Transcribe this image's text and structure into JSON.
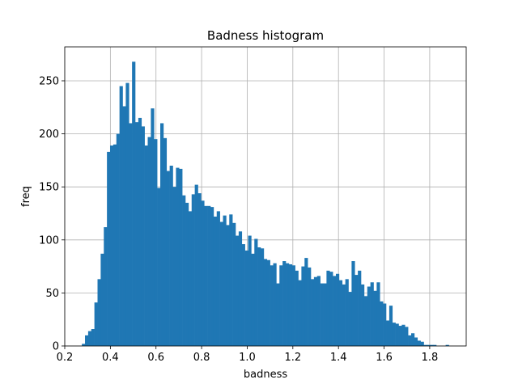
{
  "chart_data": {
    "type": "bar",
    "title": "Badness histogram",
    "xlabel": "badness",
    "ylabel": "freq",
    "xlim": [
      0.2,
      1.96
    ],
    "ylim": [
      0,
      282
    ],
    "grid": true,
    "bar_color": "#1f77b4",
    "bin_start": 0.275,
    "bin_width": 0.01375,
    "x_ticks": [
      {
        "value": 0.2,
        "label": "0.2"
      },
      {
        "value": 0.4,
        "label": "0.4"
      },
      {
        "value": 0.6,
        "label": "0.6"
      },
      {
        "value": 0.8,
        "label": "0.8"
      },
      {
        "value": 1.0,
        "label": "1.0"
      },
      {
        "value": 1.2,
        "label": "1.2"
      },
      {
        "value": 1.4,
        "label": "1.4"
      },
      {
        "value": 1.6,
        "label": "1.6"
      },
      {
        "value": 1.8,
        "label": "1.8"
      }
    ],
    "y_ticks": [
      {
        "value": 0,
        "label": "0"
      },
      {
        "value": 50,
        "label": "50"
      },
      {
        "value": 100,
        "label": "100"
      },
      {
        "value": 150,
        "label": "150"
      },
      {
        "value": 200,
        "label": "200"
      },
      {
        "value": 250,
        "label": "250"
      }
    ],
    "values": [
      2,
      10,
      14,
      16,
      41,
      63,
      87,
      112,
      183,
      189,
      190,
      200,
      245,
      226,
      248,
      210,
      268,
      211,
      215,
      207,
      189,
      197,
      224,
      195,
      149,
      210,
      196,
      165,
      170,
      150,
      168,
      167,
      142,
      135,
      127,
      143,
      152,
      144,
      137,
      132,
      132,
      131,
      122,
      127,
      117,
      123,
      114,
      124,
      116,
      104,
      108,
      96,
      90,
      104,
      87,
      101,
      93,
      92,
      82,
      81,
      76,
      78,
      59,
      76,
      80,
      78,
      77,
      76,
      71,
      62,
      75,
      83,
      74,
      63,
      65,
      66,
      59,
      59,
      71,
      70,
      66,
      68,
      62,
      58,
      63,
      51,
      80,
      67,
      71,
      58,
      47,
      56,
      60,
      52,
      60,
      42,
      40,
      24,
      38,
      22,
      21,
      19,
      20,
      18,
      10,
      12,
      8,
      5,
      4,
      1,
      1,
      1,
      1,
      0,
      0,
      0,
      1,
      0,
      0
    ]
  }
}
